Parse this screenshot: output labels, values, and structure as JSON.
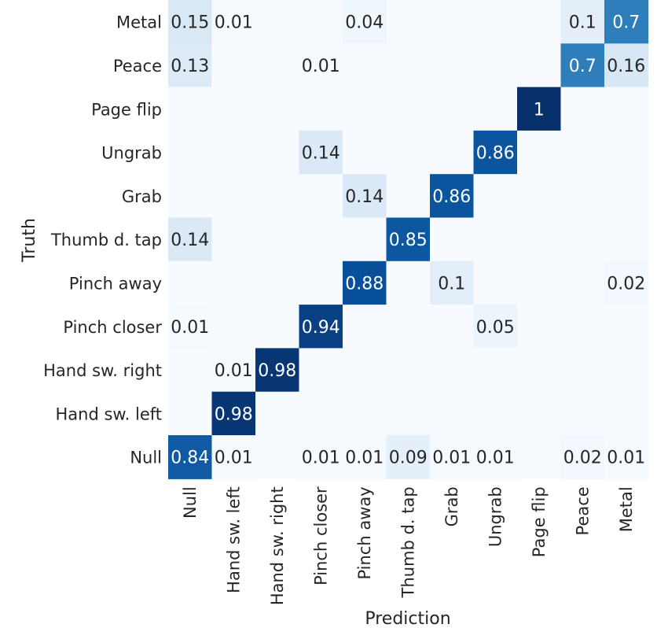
{
  "chart_data": {
    "type": "heatmap",
    "xlabel": "Prediction",
    "ylabel": "Truth",
    "x_categories": [
      "Null",
      "Hand sw. left",
      "Hand sw. right",
      "Pinch closer",
      "Pinch away",
      "Thumb d. tap",
      "Grab",
      "Ungrab",
      "Page flip",
      "Peace",
      "Metal"
    ],
    "y_categories_top_to_bottom": [
      "Metal",
      "Peace",
      "Page flip",
      "Ungrab",
      "Grab",
      "Thumb d. tap",
      "Pinch away",
      "Pinch closer",
      "Hand sw. right",
      "Hand sw. left",
      "Null"
    ],
    "value_range": [
      0,
      1
    ],
    "colormap": [
      "#f7fbff",
      "#deebf7",
      "#c6dbef",
      "#9ecae1",
      "#6baed6",
      "#4292c6",
      "#2171b5",
      "#08519c",
      "#08306b"
    ],
    "matrix": [
      [
        0.15,
        0.01,
        0,
        0,
        0.04,
        0,
        0,
        0,
        0,
        0.1,
        0.7
      ],
      [
        0.13,
        0,
        0,
        0.01,
        0,
        0,
        0,
        0,
        0,
        0.7,
        0.16
      ],
      [
        0,
        0,
        0,
        0,
        0,
        0,
        0,
        0,
        1,
        0,
        0
      ],
      [
        0,
        0,
        0,
        0.14,
        0,
        0,
        0,
        0.86,
        0,
        0,
        0
      ],
      [
        0,
        0,
        0,
        0,
        0.14,
        0,
        0.86,
        0,
        0,
        0,
        0
      ],
      [
        0.14,
        0,
        0,
        0,
        0,
        0.85,
        0,
        0,
        0,
        0,
        0
      ],
      [
        0,
        0,
        0,
        0,
        0.88,
        0,
        0.1,
        0,
        0,
        0,
        0.02
      ],
      [
        0.01,
        0,
        0,
        0.94,
        0,
        0,
        0,
        0.05,
        0,
        0,
        0
      ],
      [
        0,
        0.01,
        0.98,
        0,
        0,
        0,
        0,
        0,
        0,
        0,
        0
      ],
      [
        0,
        0.98,
        0,
        0,
        0,
        0,
        0,
        0,
        0,
        0,
        0
      ],
      [
        0.84,
        0.01,
        0,
        0.01,
        0.01,
        0.09,
        0.01,
        0.01,
        0,
        0.02,
        0.01
      ]
    ]
  }
}
